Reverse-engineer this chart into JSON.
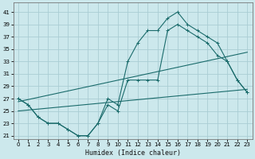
{
  "xlabel": "Humidex (Indice chaleur)",
  "bg_color": "#cce8ec",
  "grid_color": "#aacdd4",
  "line_color": "#1a6b6b",
  "xlim": [
    -0.5,
    23.5
  ],
  "ylim": [
    20.5,
    42.5
  ],
  "xticks": [
    0,
    1,
    2,
    3,
    4,
    5,
    6,
    7,
    8,
    9,
    10,
    11,
    12,
    13,
    14,
    15,
    16,
    17,
    18,
    19,
    20,
    21,
    22,
    23
  ],
  "yticks": [
    21,
    23,
    25,
    27,
    29,
    31,
    33,
    35,
    37,
    39,
    41
  ],
  "series1_x": [
    0,
    1,
    2,
    3,
    4,
    5,
    6,
    7,
    8,
    9,
    10,
    11,
    12,
    13,
    14,
    15,
    16,
    17,
    18,
    19,
    20,
    21,
    22,
    23
  ],
  "series1_y": [
    27,
    26,
    24,
    23,
    23,
    22,
    21,
    21,
    23,
    27,
    26,
    33,
    36,
    38,
    38,
    40,
    41,
    39,
    38,
    37,
    36,
    33,
    30,
    28
  ],
  "series2_x": [
    0,
    1,
    2,
    3,
    4,
    5,
    6,
    7,
    8,
    9,
    10,
    11,
    12,
    13,
    14,
    15,
    16,
    17,
    18,
    19,
    20,
    21,
    22,
    23
  ],
  "series2_y": [
    27,
    26,
    24,
    23,
    23,
    22,
    21,
    21,
    23,
    26,
    25,
    30,
    30,
    30,
    30,
    38,
    39,
    38,
    37,
    36,
    34,
    33,
    30,
    28
  ],
  "trend1_x": [
    0,
    23
  ],
  "trend1_y": [
    26.5,
    34.5
  ],
  "trend2_x": [
    0,
    23
  ],
  "trend2_y": [
    25.0,
    28.5
  ]
}
